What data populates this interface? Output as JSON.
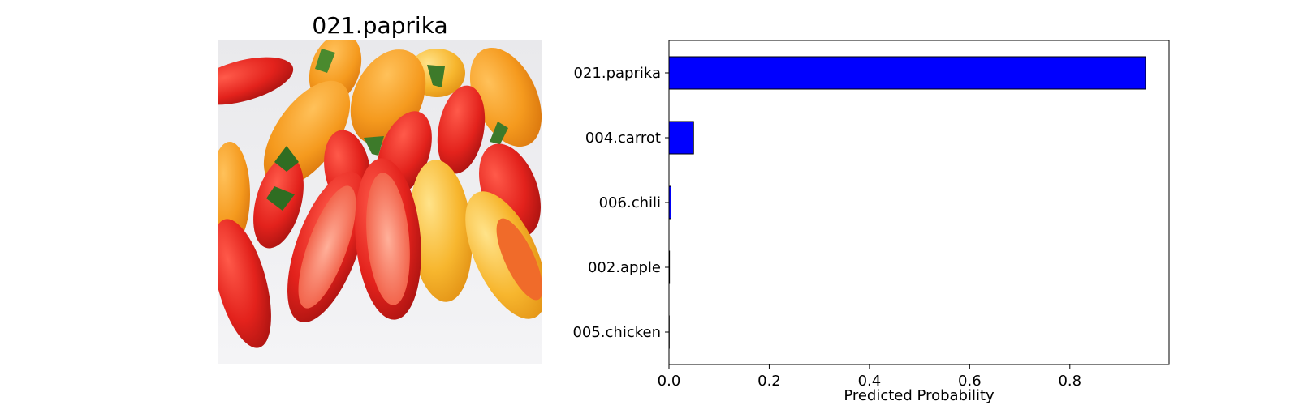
{
  "image_panel": {
    "title": "021.paprika",
    "photo_alt": "Photo of red, orange and yellow peppers"
  },
  "colors": {
    "bar_fill": "#0000ff",
    "bar_edge": "#000000",
    "axes": "#000000"
  },
  "chart_data": {
    "type": "bar",
    "orientation": "horizontal",
    "categories": [
      "021.paprika",
      "004.carrot",
      "006.chili",
      "002.apple",
      "005.chicken"
    ],
    "values": [
      0.951,
      0.049,
      0.004,
      0.001,
      0.0005
    ],
    "xlabel": "Predicted Probability",
    "ylabel": "",
    "xlim": [
      0,
      0.998
    ],
    "xticks": [
      0.0,
      0.2,
      0.4,
      0.6,
      0.8
    ],
    "xtick_labels": [
      "0.0",
      "0.2",
      "0.4",
      "0.6",
      "0.8"
    ],
    "grid": false,
    "legend": "none"
  }
}
